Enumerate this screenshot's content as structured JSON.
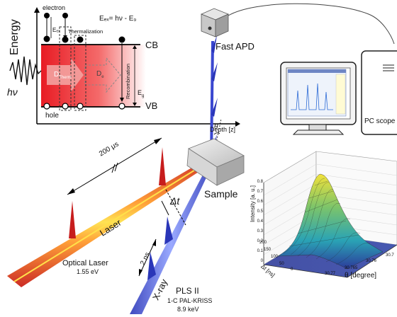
{
  "energy_diagram": {
    "y_axis_label": "Energy",
    "x_axis_label": "Depth [z]",
    "electron_label": "electron",
    "hole_label": "hole",
    "equation": "Eₑₓ= hν - E₉",
    "eex_label": "Eₑₓ",
    "thermalization_label": "Thermalization",
    "cb_label": "CB",
    "vb_label": "VB",
    "dtherm_label": "D",
    "dtherm_sub": "Therm",
    "de_label": "D",
    "de_sub": "e",
    "recombination_label": "Recombination",
    "eg_label": "E",
    "eg_sub": "g",
    "photon_label": "hν",
    "colors": {
      "hot": "#e8202a",
      "arrow": "#f6a3a3"
    }
  },
  "setup": {
    "detector_label": "Fast APD",
    "pc_scope_label": "PC scope",
    "sample_label": "Sample",
    "theta_label": "θ",
    "pulse_period_label": "200 μs",
    "delay_label": "Δt",
    "laser_beam_label": "Laser",
    "xray_pulse_label": "2 ns",
    "xray_beam_label": "X-ray",
    "optical_laser_label": "Optical Laser",
    "optical_laser_energy": "1.55 eV",
    "source_name": "PLS II",
    "source_beamline": "1-C PAL-KRISS",
    "source_energy": "8.9 keV",
    "colors": {
      "laser_core": "#ffcc33",
      "laser_edge": "#d8261c",
      "xray": "#3d4fd8"
    }
  },
  "plot3d": {
    "z_label": "Intensity [a. u.]",
    "z_ticks": [
      "0",
      "0.1",
      "0.2",
      "0.3",
      "0.4",
      "0.5",
      "0.6",
      "0.7",
      "0.8"
    ],
    "y_label": "Δt [ns]",
    "y_ticks": [
      "0",
      "50",
      "100",
      "150",
      "200"
    ],
    "x_label": "θ [degree]",
    "x_ticks": [
      "30.77",
      "30.765",
      "30.76",
      "30.7"
    ]
  }
}
